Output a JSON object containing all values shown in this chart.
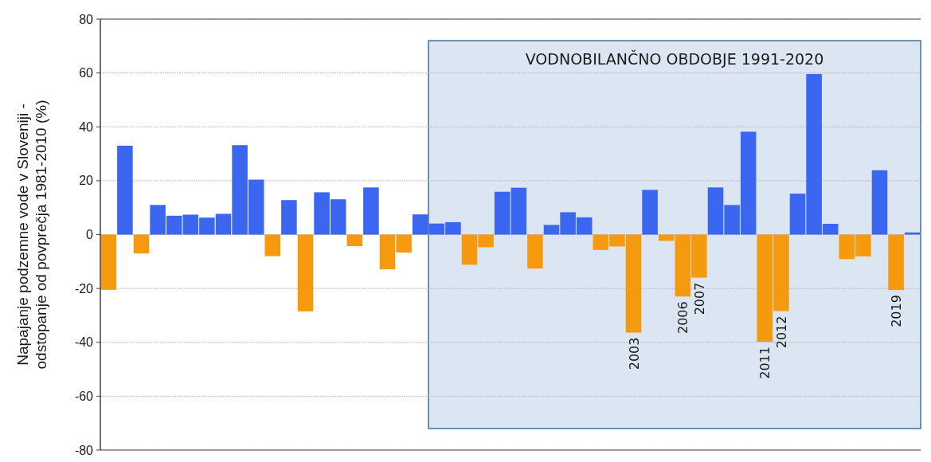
{
  "chart_data": {
    "type": "bar",
    "ylabel": "Napajanje podzemne vode v Sloveniji -\nodstopanje od povprečja 1981-2010 (%)",
    "categories": [
      null,
      null,
      null,
      null,
      null,
      null,
      null,
      null,
      null,
      null,
      null,
      null,
      null,
      null,
      null,
      null,
      null,
      null,
      null,
      null,
      null,
      null,
      null,
      null,
      null,
      null,
      null,
      null,
      null,
      null,
      null,
      null,
      "2003",
      null,
      null,
      "2006",
      "2007",
      null,
      null,
      null,
      "2011",
      "2012",
      null,
      null,
      null,
      null,
      null,
      null,
      "2019",
      null
    ],
    "values": [
      -20.5,
      33,
      -7,
      11,
      7,
      7.4,
      6.3,
      7.7,
      33.2,
      20.4,
      -8,
      12.8,
      -28.5,
      15.7,
      13.1,
      -4.3,
      17.5,
      -12.9,
      -6.7,
      7.5,
      4.1,
      4.6,
      -11.2,
      -4.7,
      15.9,
      17.4,
      -12.6,
      3.6,
      8.3,
      6.4,
      -5.7,
      -4.4,
      -36.4,
      16.6,
      -2.3,
      -23,
      -16,
      17.5,
      11,
      38.2,
      -39.8,
      -28.4,
      15.2,
      59.6,
      4,
      -9.1,
      -8.1,
      23.9,
      -20.6,
      0.8
    ],
    "colors": [
      "#f59a0e",
      "#3a66f0",
      "#f59a0e",
      "#3a66f0",
      "#3a66f0",
      "#3a66f0",
      "#3a66f0",
      "#3a66f0",
      "#3a66f0",
      "#3a66f0",
      "#f59a0e",
      "#3a66f0",
      "#f59a0e",
      "#3a66f0",
      "#3a66f0",
      "#f59a0e",
      "#3a66f0",
      "#f59a0e",
      "#f59a0e",
      "#3a66f0",
      "#3a66f0",
      "#3a66f0",
      "#f59a0e",
      "#f59a0e",
      "#3a66f0",
      "#3a66f0",
      "#f59a0e",
      "#3a66f0",
      "#3a66f0",
      "#3a66f0",
      "#f59a0e",
      "#f59a0e",
      "#f59a0e",
      "#3a66f0",
      "#f59a0e",
      "#f59a0e",
      "#f59a0e",
      "#3a66f0",
      "#3a66f0",
      "#3a66f0",
      "#f59a0e",
      "#f59a0e",
      "#3a66f0",
      "#3a66f0",
      "#3a66f0",
      "#f59a0e",
      "#f59a0e",
      "#3a66f0",
      "#f59a0e",
      "#3a66f0"
    ],
    "ylim": [
      -80,
      80
    ],
    "yticks": [
      -80,
      -60,
      -40,
      -20,
      0,
      20,
      40,
      60,
      80
    ],
    "grid": "y",
    "annotations": [
      "VODNOBILANČNO OBDOBJE 1991-2020"
    ]
  }
}
